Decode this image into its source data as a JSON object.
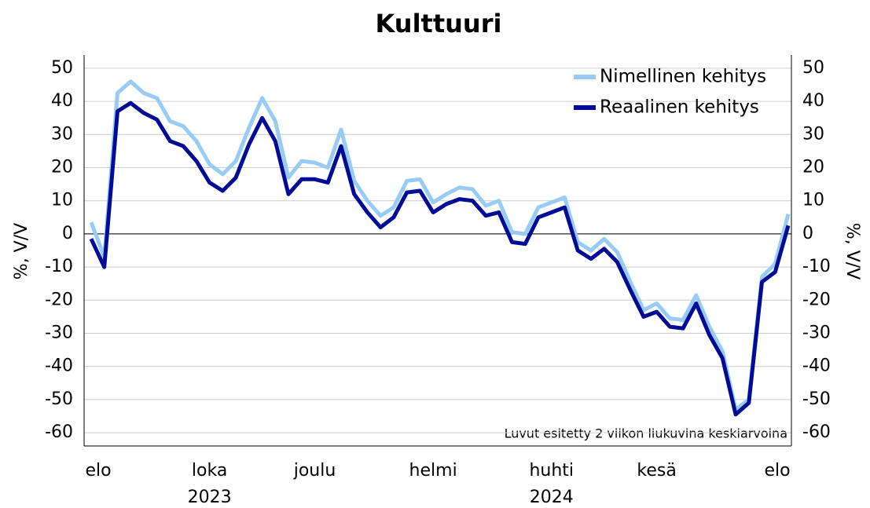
{
  "chart_data": {
    "type": "line",
    "title": "Kulttuuri",
    "y_label": "%, V/V",
    "y2_label": "%, V/V",
    "annotation": "Luvut esitetty 2 viikon liukuvina keskiarvoina",
    "categories": [
      "elo",
      null,
      null,
      null,
      null,
      null,
      null,
      null,
      null,
      "loka",
      null,
      null,
      null,
      null,
      null,
      null,
      null,
      "joulu",
      null,
      null,
      null,
      null,
      null,
      null,
      null,
      null,
      "helmi",
      null,
      null,
      null,
      null,
      null,
      null,
      null,
      null,
      "huhti",
      null,
      null,
      null,
      null,
      null,
      null,
      null,
      "kesä",
      null,
      null,
      null,
      null,
      null,
      null,
      null,
      null,
      null,
      "elo"
    ],
    "years": [
      {
        "label": "2023",
        "category": "loka"
      },
      {
        "label": "2024",
        "category": "huhti"
      }
    ],
    "series": [
      {
        "name": "Nimellinen kehitys",
        "color": "#99ccf5",
        "values": [
          3.5,
          -7,
          42.5,
          46,
          42.5,
          41,
          34,
          32.5,
          28,
          21,
          18,
          22,
          32,
          41,
          34,
          17,
          22,
          21.5,
          20,
          31.5,
          16,
          10,
          5.5,
          8,
          16,
          16.5,
          9.5,
          12,
          14,
          13.5,
          8.5,
          10,
          0.5,
          0,
          8,
          9.5,
          11,
          -2.5,
          -5,
          -1.5,
          -5.5,
          -14.5,
          -23,
          -21,
          -25.5,
          -26,
          -18.5,
          -28,
          -35.5,
          -53,
          -50,
          -13,
          -9,
          6
        ]
      },
      {
        "name": "Reaalinen kehitys",
        "color": "#000c96",
        "values": [
          -1.5,
          -10,
          37,
          39.5,
          36.5,
          34.5,
          28,
          26.5,
          22,
          15.5,
          13,
          17,
          27,
          35,
          28,
          12,
          16.5,
          16.5,
          15.5,
          26.5,
          12,
          6.5,
          2,
          5,
          12.5,
          13,
          6.5,
          9,
          10.5,
          10,
          5.5,
          6.5,
          -2.5,
          -3,
          5,
          6.5,
          8,
          -5,
          -7.5,
          -4.5,
          -8.5,
          -17,
          -25,
          -23.5,
          -28,
          -28.5,
          -21,
          -30.5,
          -37.5,
          -54.5,
          -51,
          -14.5,
          -11.5,
          2.5
        ]
      }
    ],
    "ylim": [
      -64,
      54
    ],
    "yticks": [
      -60,
      -50,
      -40,
      -30,
      -20,
      -10,
      0,
      10,
      20,
      30,
      40,
      50
    ],
    "y2lim": [
      -64,
      54
    ],
    "y2ticks": [
      -60,
      -50,
      -40,
      -30,
      -20,
      -10,
      0,
      10,
      20,
      30,
      40,
      50
    ],
    "grid": true,
    "legend": "top-right"
  }
}
